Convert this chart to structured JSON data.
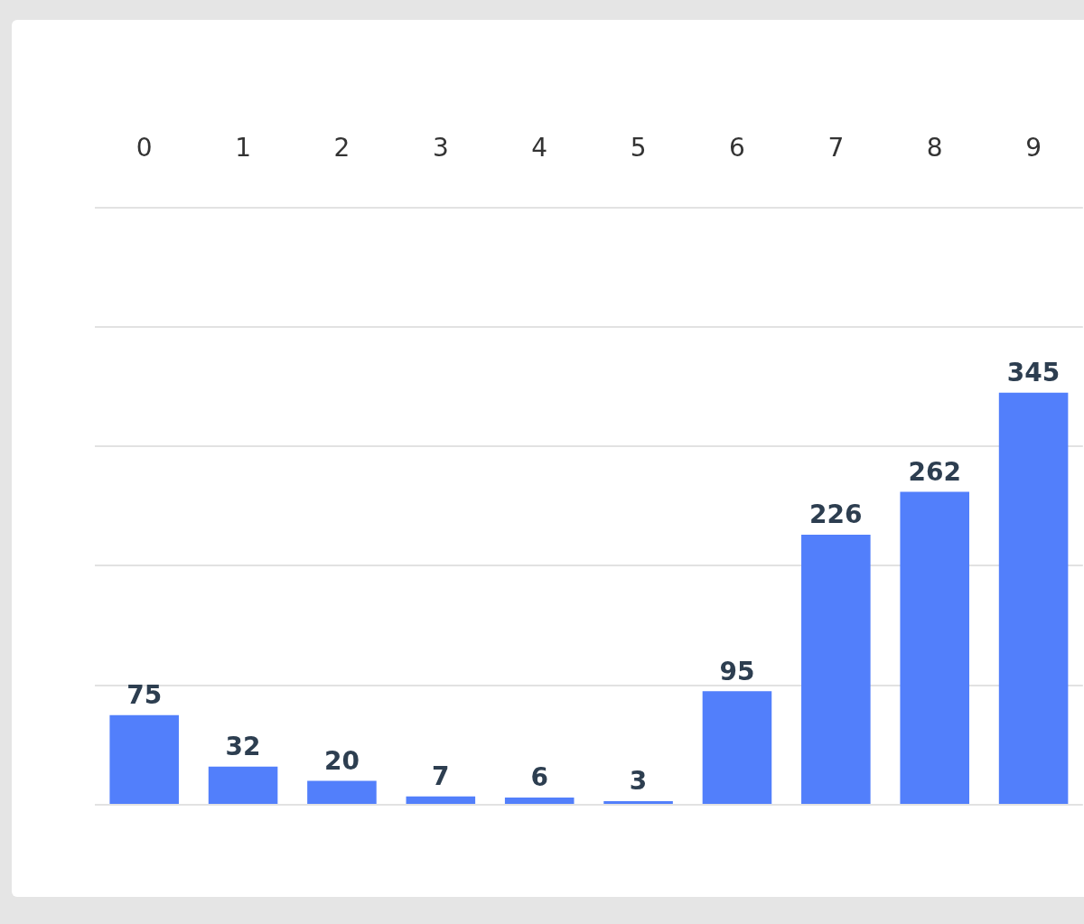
{
  "chart_data": {
    "type": "bar",
    "categories": [
      "0",
      "1",
      "2",
      "3",
      "4",
      "5",
      "6",
      "7",
      "8",
      "9"
    ],
    "values": [
      75,
      32,
      20,
      7,
      6,
      3,
      95,
      226,
      262,
      345
    ],
    "color": "#527ffb",
    "ylim": [
      0,
      500
    ],
    "yticks": [
      {
        "value": 0,
        "label": null
      },
      {
        "value": 100,
        "label": null
      },
      {
        "value": 200,
        "label": null
      },
      {
        "value": 300,
        "label": null
      },
      {
        "value": 400,
        "label": null
      },
      {
        "value": 500,
        "label": null
      }
    ],
    "grid": "y",
    "data_labels": true,
    "tick_labels": "x"
  }
}
